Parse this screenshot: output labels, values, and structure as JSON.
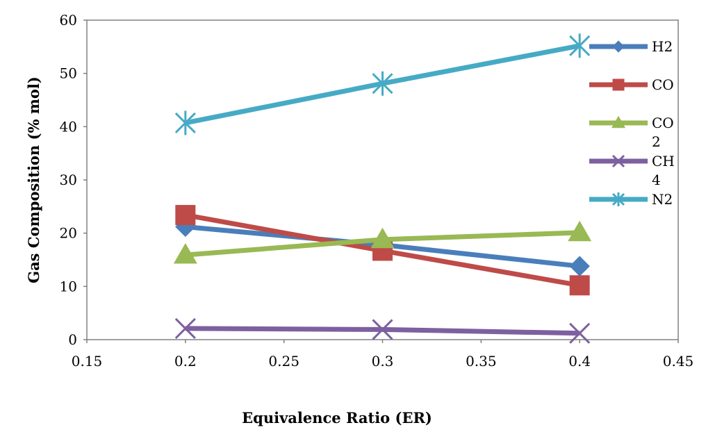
{
  "chart_data": {
    "type": "line",
    "xlabel": "Equivalence Ratio (ER)",
    "ylabel": "Gas Composition (% mol)",
    "xlim": [
      0.15,
      0.45
    ],
    "ylim": [
      0,
      60
    ],
    "xticks": [
      "0.15",
      "0.2",
      "0.25",
      "0.3",
      "0.35",
      "0.4",
      "0.45"
    ],
    "yticks": [
      "0",
      "10",
      "20",
      "30",
      "40",
      "50",
      "60"
    ],
    "grid": false,
    "legend_position": "right",
    "x": [
      0.2,
      0.3,
      0.4
    ],
    "series": [
      {
        "name": "H2",
        "legend_lines": [
          "H2"
        ],
        "values": [
          21.2,
          17.8,
          13.8
        ],
        "color": "#4a7ebb",
        "marker": "diamond"
      },
      {
        "name": "CO",
        "legend_lines": [
          "CO"
        ],
        "values": [
          23.4,
          16.7,
          10.2
        ],
        "color": "#be4b48",
        "marker": "square"
      },
      {
        "name": "CO2",
        "legend_lines": [
          "CO",
          "2"
        ],
        "values": [
          15.9,
          18.8,
          20.1
        ],
        "color": "#98b954",
        "marker": "triangle"
      },
      {
        "name": "CH4",
        "legend_lines": [
          "CH",
          "4"
        ],
        "values": [
          2.1,
          1.9,
          1.2
        ],
        "color": "#7d60a0",
        "marker": "x"
      },
      {
        "name": "N2",
        "legend_lines": [
          "N2"
        ],
        "values": [
          40.7,
          48.1,
          55.2
        ],
        "color": "#46aac5",
        "marker": "star"
      }
    ]
  }
}
